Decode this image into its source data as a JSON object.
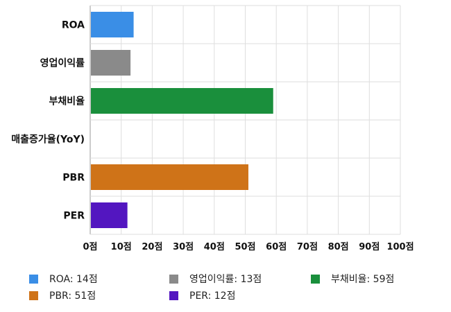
{
  "chart_data": {
    "type": "bar",
    "orientation": "horizontal",
    "categories": [
      "ROA",
      "영업이익률",
      "부채비율",
      "매출증가율(YoY)",
      "PBR",
      "PER"
    ],
    "values": [
      14,
      13,
      59,
      0,
      51,
      12
    ],
    "colors": [
      "#3a8ee6",
      "#8a8a8a",
      "#1a8f3c",
      "#ffffff",
      "#cf7318",
      "#5316c0"
    ],
    "xlim": [
      0,
      100
    ],
    "xticks": [
      "0점",
      "10점",
      "20점",
      "30점",
      "40점",
      "50점",
      "60점",
      "70점",
      "80점",
      "90점",
      "100점"
    ],
    "grid": true,
    "legend_position": "bottom"
  },
  "legend": [
    {
      "label": "ROA: 14점",
      "color": "#3a8ee6"
    },
    {
      "label": "영업이익률: 13점",
      "color": "#8a8a8a"
    },
    {
      "label": "부채비율: 59점",
      "color": "#1a8f3c"
    },
    {
      "label": "PBR: 51점",
      "color": "#cf7318"
    },
    {
      "label": "PER: 12점",
      "color": "#5316c0"
    }
  ]
}
